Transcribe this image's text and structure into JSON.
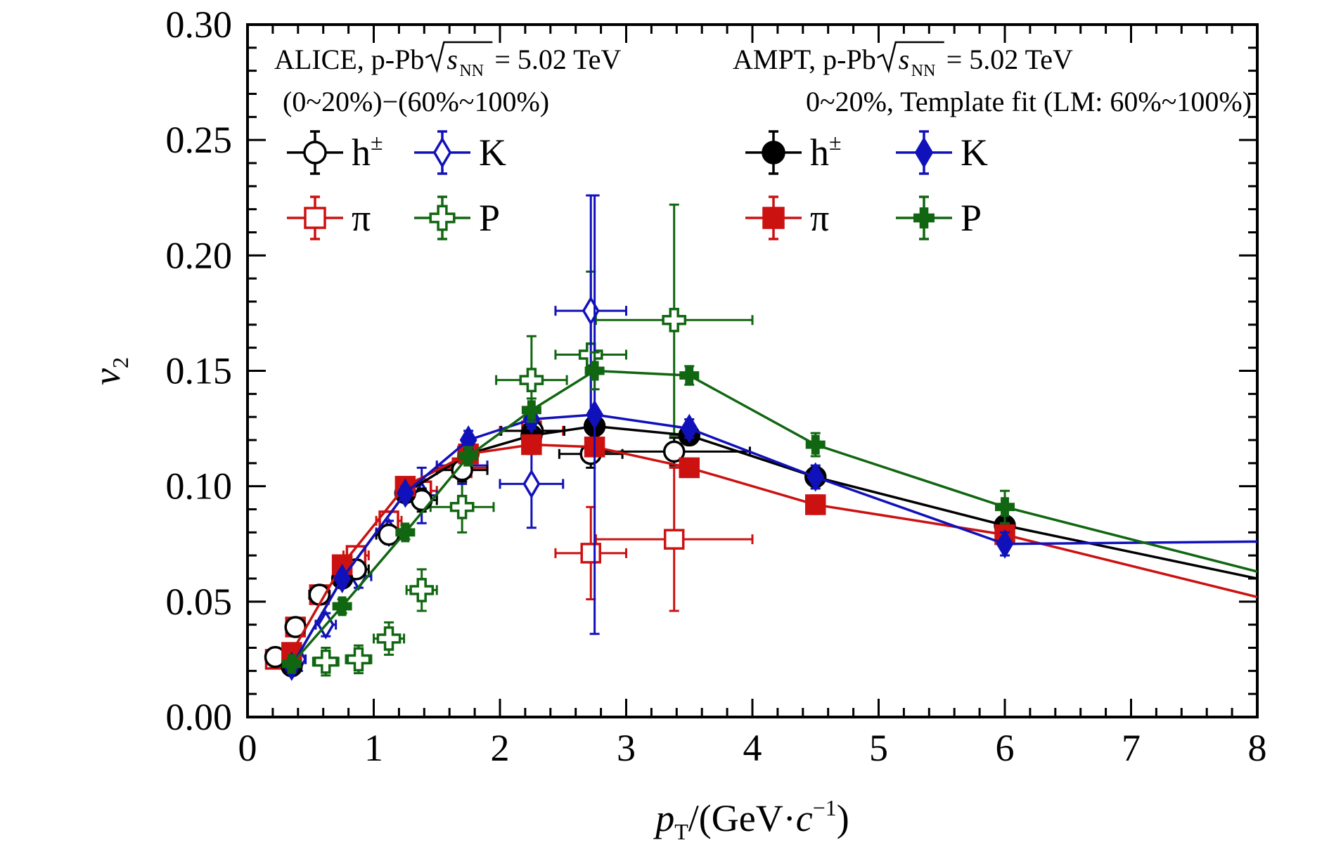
{
  "chart_data": {
    "type": "scatter",
    "title": "",
    "xlabel": {
      "base": "p",
      "sub": "T",
      "unit_open": "/(GeV·",
      "c": "c",
      "sup": "−1",
      "unit_close": ")"
    },
    "ylabel": {
      "base": "v",
      "sub": "2"
    },
    "xlim": [
      0,
      8
    ],
    "ylim": [
      0,
      0.3
    ],
    "x_ticks": [
      "0",
      "1",
      "2",
      "3",
      "4",
      "5",
      "6",
      "7",
      "8"
    ],
    "y_ticks": [
      "0.00",
      "0.05",
      "0.10",
      "0.15",
      "0.20",
      "0.25",
      "0.30"
    ],
    "grid": false,
    "annotations": {
      "alice_line1_a": "ALICE, p-Pb ",
      "alice_line1_b": " = 5.02 TeV",
      "alice_line2": "(0~20%)−(60%~100%)",
      "ampt_line1_a": "AMPT, p-Pb ",
      "ampt_line1_b": " = 5.02 TeV",
      "ampt_line2": "0~20%, Template fit (LM: 60%~100%)",
      "sqrt_s": "s",
      "sqrt_sub": "NN"
    },
    "legend": {
      "placement": "top",
      "alice": [
        {
          "label": "h",
          "sup": "±",
          "series": "h_exp"
        },
        {
          "label": "K",
          "sup": "",
          "series": "K_exp"
        },
        {
          "label": "π",
          "sup": "",
          "series": "pi_exp"
        },
        {
          "label": "P",
          "sup": "",
          "series": "p_exp"
        }
      ],
      "ampt": [
        {
          "label": "h",
          "sup": "±",
          "series": "h_ampt"
        },
        {
          "label": "K",
          "sup": "",
          "series": "K_ampt"
        },
        {
          "label": "π",
          "sup": "",
          "series": "pi_ampt"
        },
        {
          "label": "P",
          "sup": "",
          "series": "p_ampt"
        }
      ]
    },
    "series": [
      {
        "id": "h_exp",
        "color": "#000000",
        "marker": "circle",
        "filled": false,
        "line": false,
        "points": [
          {
            "x": 0.22,
            "y": 0.026,
            "xerr": 0.05,
            "yerr": 0.004
          },
          {
            "x": 0.38,
            "y": 0.039,
            "xerr": 0.05,
            "yerr": 0.004
          },
          {
            "x": 0.57,
            "y": 0.053,
            "xerr": 0.08,
            "yerr": 0.004
          },
          {
            "x": 0.86,
            "y": 0.064,
            "xerr": 0.1,
            "yerr": 0.004
          },
          {
            "x": 1.12,
            "y": 0.079,
            "xerr": 0.1,
            "yerr": 0.004
          },
          {
            "x": 1.38,
            "y": 0.094,
            "xerr": 0.12,
            "yerr": 0.005
          },
          {
            "x": 1.7,
            "y": 0.107,
            "xerr": 0.2,
            "yerr": 0.005
          },
          {
            "x": 2.26,
            "y": 0.124,
            "xerr": 0.25,
            "yerr": 0.005
          },
          {
            "x": 2.72,
            "y": 0.114,
            "xerr": 0.25,
            "yerr": 0.006
          },
          {
            "x": 3.38,
            "y": 0.115,
            "xerr": 0.6,
            "yerr": 0.006
          }
        ]
      },
      {
        "id": "K_exp",
        "color": "#1111bb",
        "marker": "diamond",
        "filled": false,
        "line": false,
        "points": [
          {
            "x": 0.4,
            "y": 0.025,
            "xerr": 0.06,
            "yerr": 0.005
          },
          {
            "x": 0.62,
            "y": 0.04,
            "xerr": 0.08,
            "yerr": 0.005
          },
          {
            "x": 0.88,
            "y": 0.061,
            "xerr": 0.1,
            "yerr": 0.005
          },
          {
            "x": 1.12,
            "y": 0.08,
            "xerr": 0.1,
            "yerr": 0.005
          },
          {
            "x": 1.38,
            "y": 0.096,
            "xerr": 0.12,
            "yerr": 0.012
          },
          {
            "x": 1.7,
            "y": 0.109,
            "xerr": 0.2,
            "yerr": 0.008
          },
          {
            "x": 2.25,
            "y": 0.101,
            "xerr": 0.25,
            "yerr": 0.019
          },
          {
            "x": 2.72,
            "y": 0.176,
            "xerr": 0.28,
            "yerr": 0.05
          }
        ]
      },
      {
        "id": "pi_exp",
        "color": "#cc1111",
        "marker": "square",
        "filled": false,
        "line": false,
        "points": [
          {
            "x": 0.22,
            "y": 0.025,
            "xerr": 0.05,
            "yerr": 0.004
          },
          {
            "x": 0.38,
            "y": 0.039,
            "xerr": 0.05,
            "yerr": 0.004
          },
          {
            "x": 0.57,
            "y": 0.053,
            "xerr": 0.08,
            "yerr": 0.004
          },
          {
            "x": 0.86,
            "y": 0.07,
            "xerr": 0.1,
            "yerr": 0.004
          },
          {
            "x": 1.12,
            "y": 0.085,
            "xerr": 0.1,
            "yerr": 0.004
          },
          {
            "x": 1.38,
            "y": 0.098,
            "xerr": 0.12,
            "yerr": 0.005
          },
          {
            "x": 1.7,
            "y": 0.108,
            "xerr": 0.2,
            "yerr": 0.005
          },
          {
            "x": 2.25,
            "y": 0.124,
            "xerr": 0.25,
            "yerr": 0.006
          },
          {
            "x": 2.72,
            "y": 0.071,
            "xerr": 0.28,
            "yerr": 0.02
          },
          {
            "x": 3.38,
            "y": 0.077,
            "xerr": 0.62,
            "yerr": 0.031
          }
        ]
      },
      {
        "id": "p_exp",
        "color": "#116611",
        "marker": "cross",
        "filled": false,
        "line": false,
        "points": [
          {
            "x": 0.62,
            "y": 0.024,
            "xerr": 0.1,
            "yerr": 0.006
          },
          {
            "x": 0.88,
            "y": 0.025,
            "xerr": 0.1,
            "yerr": 0.006
          },
          {
            "x": 1.12,
            "y": 0.034,
            "xerr": 0.12,
            "yerr": 0.007
          },
          {
            "x": 1.38,
            "y": 0.055,
            "xerr": 0.12,
            "yerr": 0.009
          },
          {
            "x": 1.7,
            "y": 0.091,
            "xerr": 0.25,
            "yerr": 0.011
          },
          {
            "x": 2.25,
            "y": 0.146,
            "xerr": 0.28,
            "yerr": 0.019
          },
          {
            "x": 2.72,
            "y": 0.157,
            "xerr": 0.28,
            "yerr": 0.036
          },
          {
            "x": 3.38,
            "y": 0.172,
            "xerr": 0.62,
            "yerr": 0.05
          }
        ]
      },
      {
        "id": "h_ampt",
        "color": "#000000",
        "marker": "circle",
        "filled": true,
        "line": true,
        "points": [
          {
            "x": 0.35,
            "y": 0.022,
            "xerr": 0,
            "yerr": 0.002
          },
          {
            "x": 0.75,
            "y": 0.06,
            "xerr": 0,
            "yerr": 0.003
          },
          {
            "x": 1.25,
            "y": 0.097,
            "xerr": 0,
            "yerr": 0.003
          },
          {
            "x": 1.75,
            "y": 0.114,
            "xerr": 0,
            "yerr": 0.003
          },
          {
            "x": 2.25,
            "y": 0.122,
            "xerr": 0,
            "yerr": 0.004
          },
          {
            "x": 2.75,
            "y": 0.126,
            "xerr": 0,
            "yerr": 0.004
          },
          {
            "x": 3.5,
            "y": 0.122,
            "xerr": 0,
            "yerr": 0.004
          },
          {
            "x": 4.5,
            "y": 0.104,
            "xerr": 0,
            "yerr": 0.004
          },
          {
            "x": 6.0,
            "y": 0.083,
            "xerr": 0,
            "yerr": 0.004
          },
          {
            "x": 8.0,
            "y": 0.06,
            "xerr": 0,
            "yerr": 0
          }
        ]
      },
      {
        "id": "K_ampt",
        "color": "#1111bb",
        "marker": "diamond",
        "filled": true,
        "line": true,
        "points": [
          {
            "x": 0.35,
            "y": 0.022,
            "xerr": 0,
            "yerr": 0.003
          },
          {
            "x": 0.75,
            "y": 0.06,
            "xerr": 0,
            "yerr": 0.003
          },
          {
            "x": 1.25,
            "y": 0.097,
            "xerr": 0,
            "yerr": 0.003
          },
          {
            "x": 1.75,
            "y": 0.12,
            "xerr": 0,
            "yerr": 0.004
          },
          {
            "x": 2.25,
            "y": 0.129,
            "xerr": 0,
            "yerr": 0.004
          },
          {
            "x": 2.75,
            "y": 0.131,
            "xerr": 0,
            "yerr": 0.095
          },
          {
            "x": 3.5,
            "y": 0.125,
            "xerr": 0,
            "yerr": 0.004
          },
          {
            "x": 4.5,
            "y": 0.104,
            "xerr": 0,
            "yerr": 0.005
          },
          {
            "x": 6.0,
            "y": 0.075,
            "xerr": 0,
            "yerr": 0.005
          },
          {
            "x": 8.0,
            "y": 0.076,
            "xerr": 0,
            "yerr": 0
          }
        ]
      },
      {
        "id": "pi_ampt",
        "color": "#cc1111",
        "marker": "square",
        "filled": true,
        "line": true,
        "points": [
          {
            "x": 0.35,
            "y": 0.028,
            "xerr": 0,
            "yerr": 0.002
          },
          {
            "x": 0.75,
            "y": 0.066,
            "xerr": 0,
            "yerr": 0.003
          },
          {
            "x": 1.25,
            "y": 0.1,
            "xerr": 0,
            "yerr": 0.003
          },
          {
            "x": 1.75,
            "y": 0.114,
            "xerr": 0,
            "yerr": 0.003
          },
          {
            "x": 2.25,
            "y": 0.118,
            "xerr": 0,
            "yerr": 0.004
          },
          {
            "x": 2.75,
            "y": 0.117,
            "xerr": 0,
            "yerr": 0.004
          },
          {
            "x": 3.5,
            "y": 0.108,
            "xerr": 0,
            "yerr": 0.004
          },
          {
            "x": 4.5,
            "y": 0.092,
            "xerr": 0,
            "yerr": 0.004
          },
          {
            "x": 6.0,
            "y": 0.079,
            "xerr": 0,
            "yerr": 0.004
          },
          {
            "x": 8.0,
            "y": 0.052,
            "xerr": 0,
            "yerr": 0
          }
        ]
      },
      {
        "id": "p_ampt",
        "color": "#116611",
        "marker": "plus",
        "filled": true,
        "line": true,
        "points": [
          {
            "x": 0.35,
            "y": 0.023,
            "xerr": 0,
            "yerr": 0.002
          },
          {
            "x": 0.75,
            "y": 0.048,
            "xerr": 0,
            "yerr": 0.003
          },
          {
            "x": 1.25,
            "y": 0.08,
            "xerr": 0,
            "yerr": 0.003
          },
          {
            "x": 1.75,
            "y": 0.113,
            "xerr": 0,
            "yerr": 0.004
          },
          {
            "x": 2.25,
            "y": 0.133,
            "xerr": 0,
            "yerr": 0.005
          },
          {
            "x": 2.75,
            "y": 0.15,
            "xerr": 0,
            "yerr": 0.008
          },
          {
            "x": 3.5,
            "y": 0.148,
            "xerr": 0,
            "yerr": 0.004
          },
          {
            "x": 4.5,
            "y": 0.118,
            "xerr": 0,
            "yerr": 0.005
          },
          {
            "x": 6.0,
            "y": 0.091,
            "xerr": 0,
            "yerr": 0.007
          },
          {
            "x": 8.0,
            "y": 0.063,
            "xerr": 0,
            "yerr": 0
          }
        ]
      }
    ]
  }
}
